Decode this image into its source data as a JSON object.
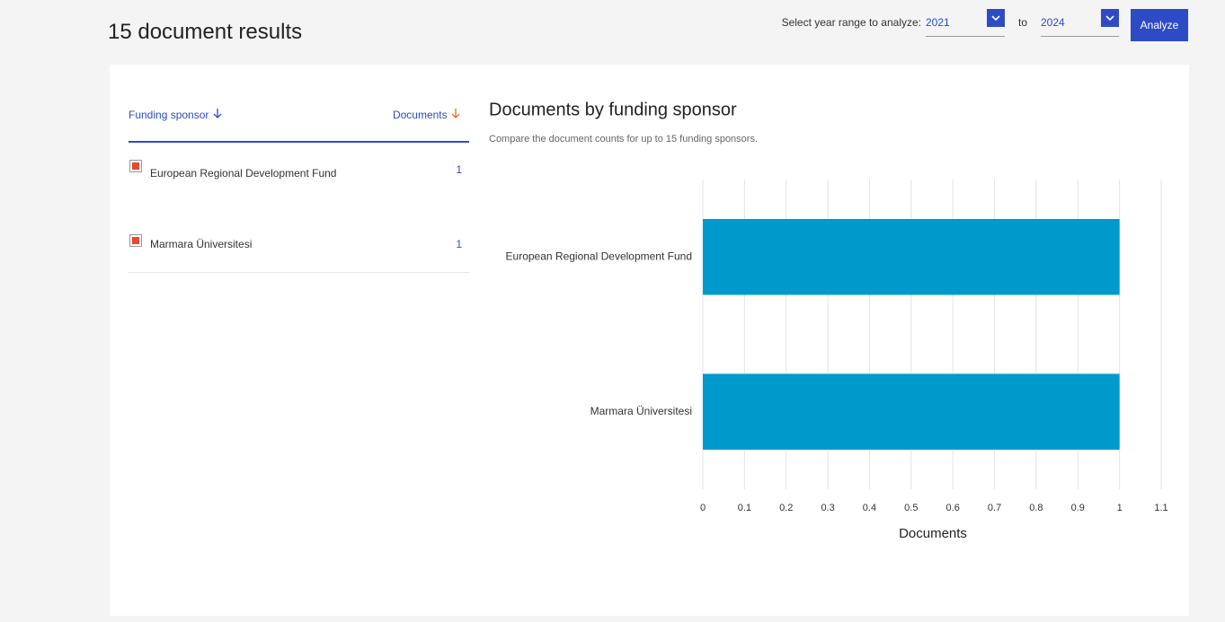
{
  "header": {
    "title": "15 document results"
  },
  "controls": {
    "range_label": "Select year range to analyze:",
    "from_year": "2021",
    "to_label": "to",
    "to_year": "2024",
    "button": "Analyze"
  },
  "table": {
    "headers": [
      "Funding sponsor",
      "Documents"
    ],
    "rows": [
      [
        "European Regional Development Fund",
        1
      ],
      [
        "Marmara Üniversitesi",
        1
      ]
    ]
  },
  "chart_data": {
    "type": "hbar",
    "title": "Documents by funding sponsor",
    "subtitle": "Compare the document counts for up to 15 funding sponsors.",
    "categories": [
      "European Regional Development Fund",
      "Marmara Üniversitesi"
    ],
    "values": [
      1,
      1
    ],
    "color": "#0099cc",
    "xlim": [
      0,
      1.1
    ],
    "xticks": [
      0,
      0.1,
      0.2,
      0.3,
      0.4,
      0.5,
      0.6,
      0.7,
      0.8,
      0.9,
      1,
      1.1
    ],
    "xlabel": "Documents",
    "grid": true
  }
}
